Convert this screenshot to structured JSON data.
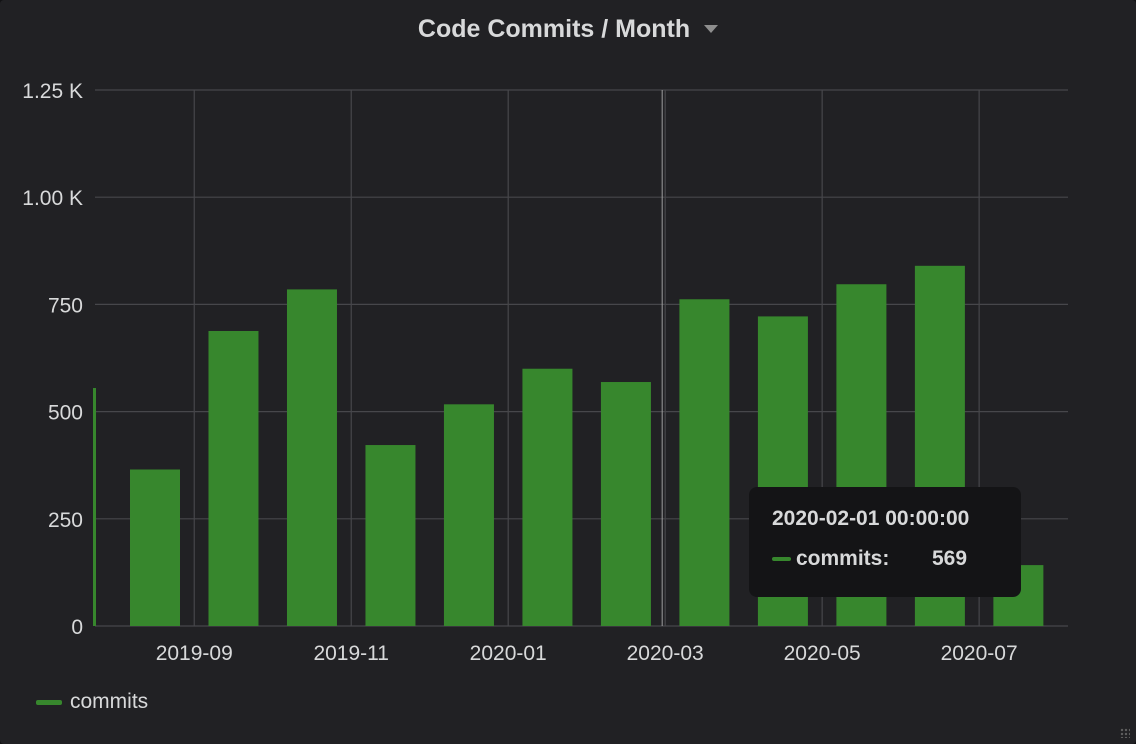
{
  "panel": {
    "title": "Code Commits / Month"
  },
  "colors": {
    "bar": "#37872d",
    "grid": "#47474b",
    "axis_text": "#d8d9da",
    "panel_bg": "#212124",
    "tooltip_bg": "#141416"
  },
  "chart_data": {
    "type": "bar",
    "title": "Code Commits / Month",
    "xlabel": "",
    "ylabel": "",
    "categories": [
      "2019-08",
      "2019-09",
      "2019-10",
      "2019-11",
      "2019-12",
      "2020-01",
      "2020-02",
      "2020-03",
      "2020-04",
      "2020-05",
      "2020-06",
      "2020-07"
    ],
    "series": [
      {
        "name": "commits",
        "values": [
          365,
          688,
          785,
          422,
          517,
          600,
          569,
          762,
          722,
          797,
          840,
          142
        ]
      }
    ],
    "ylim": [
      0,
      1250
    ],
    "y_ticks": [
      "0",
      "250",
      "500",
      "750",
      "1.00 K",
      "1.25 K"
    ],
    "x_tick_labels": [
      "2019-09",
      "2019-11",
      "2020-01",
      "2020-03",
      "2020-05",
      "2020-07"
    ],
    "grid": true,
    "legend": "bottom-left"
  },
  "legend": {
    "items": [
      {
        "label": "commits"
      }
    ]
  },
  "tooltip": {
    "time": "2020-02-01 00:00:00",
    "series_name": "commits:",
    "value": "569"
  }
}
